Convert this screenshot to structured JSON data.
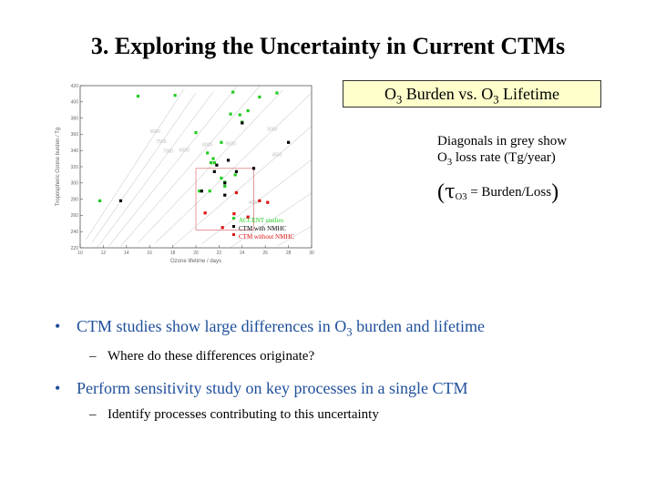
{
  "slide": {
    "title": "3. Exploring the Uncertainty in Current CTMs",
    "callout": {
      "pre": "O",
      "sub1": "3",
      "mid": " Burden vs. O",
      "sub2": "3",
      "post": " Lifetime"
    },
    "note": {
      "line1": "Diagonals in grey show",
      "line2_pre": "O",
      "line2_sub": "3",
      "line2_post": " loss rate (Tg/year)"
    },
    "formula": {
      "open": "(",
      "tau": "τ",
      "sub": "O3",
      "body": " = Burden/Loss",
      "close": ")"
    },
    "bullets": [
      {
        "pre": "CTM studies show large differences in O",
        "sub": "3",
        "post": " burden and lifetime",
        "sub_items": [
          "Where do these differences originate?"
        ]
      },
      {
        "text": "Perform sensitivity study on key processes in a single CTM",
        "sub_items": [
          "Identify processes contributing to this uncertainty"
        ]
      }
    ]
  },
  "colors": {
    "accent": "#1f4f9a",
    "callout_bg": "#ffffcc",
    "acc": "#22cc22",
    "nmhc": "#000000",
    "no_nmhc": "#dd1111"
  },
  "chart_data": {
    "type": "scatter",
    "xlabel": "Ozone lifetime / days",
    "ylabel": "Tropospheric Ozone burden / Tg",
    "xlim": [
      10,
      30
    ],
    "ylim": [
      220,
      420
    ],
    "xticks": [
      10,
      12,
      14,
      16,
      18,
      20,
      22,
      24,
      26,
      28,
      30
    ],
    "yticks": [
      220,
      240,
      260,
      280,
      300,
      320,
      340,
      360,
      380,
      400,
      420
    ],
    "diagonals": [
      {
        "label": "3000",
        "rate": 3000,
        "label_x": 14.7
      },
      {
        "label": "3500",
        "rate": 3500,
        "label_x": 17.0
      },
      {
        "label": "4000",
        "rate": 4000,
        "label_x": 25.0
      },
      {
        "label": "4500",
        "rate": 4500,
        "label_x": 27.0
      },
      {
        "label": "5000",
        "rate": 5000,
        "label_x": 26.6
      },
      {
        "label": "5500",
        "rate": 5500,
        "label_x": 23.0
      },
      {
        "label": "6000",
        "rate": 6000,
        "label_x": 21.0
      },
      {
        "label": "6500",
        "rate": 6500,
        "label_x": 19.0
      },
      {
        "label": "7000",
        "rate": 7000,
        "label_x": 17.6
      },
      {
        "label": "7500",
        "rate": 7500,
        "label_x": 17.0
      },
      {
        "label": "8000",
        "rate": 8000,
        "label_x": 16.5
      }
    ],
    "box": {
      "x": [
        20,
        25
      ],
      "y": [
        242,
        318
      ]
    },
    "series": [
      {
        "name": "ACCENT studies",
        "color": "#22cc22",
        "points": [
          [
            11.7,
            278
          ],
          [
            15,
            407
          ],
          [
            18.2,
            408
          ],
          [
            20,
            362
          ],
          [
            21,
            337
          ],
          [
            21.3,
            325
          ],
          [
            21.5,
            330
          ],
          [
            21.6,
            325
          ],
          [
            20.3,
            290
          ],
          [
            21.2,
            290
          ],
          [
            22.2,
            306
          ],
          [
            22.2,
            350
          ],
          [
            22.5,
            301
          ],
          [
            22.5,
            296
          ],
          [
            23,
            385
          ],
          [
            23.2,
            412
          ],
          [
            23.4,
            310
          ],
          [
            23.8,
            384
          ],
          [
            24,
            375
          ],
          [
            24.5,
            389
          ],
          [
            25.5,
            406
          ],
          [
            27,
            411
          ]
        ]
      },
      {
        "name": "CTM with NMHC",
        "color": "#000000",
        "points": [
          [
            13.5,
            278
          ],
          [
            20.5,
            290
          ],
          [
            21.6,
            314
          ],
          [
            21.8,
            322
          ],
          [
            22.5,
            285
          ],
          [
            22.5,
            300
          ],
          [
            22.8,
            328
          ],
          [
            23.5,
            314
          ],
          [
            24,
            374
          ],
          [
            25,
            318
          ],
          [
            28,
            350
          ]
        ]
      },
      {
        "name": "CTM without NMHC",
        "color": "#dd1111",
        "points": [
          [
            20.8,
            263
          ],
          [
            22.3,
            245
          ],
          [
            23.3,
            262
          ],
          [
            23.5,
            288
          ],
          [
            24.5,
            258
          ],
          [
            25.5,
            278
          ],
          [
            26.2,
            276
          ]
        ]
      }
    ]
  }
}
